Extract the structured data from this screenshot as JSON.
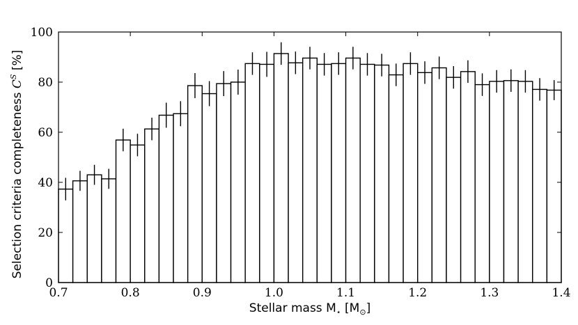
{
  "chart_data": {
    "type": "bar",
    "title": "",
    "xlabel": "Stellar mass M",
    "xlabel_subscript": "⋆",
    "xlabel_unit_open": " [M",
    "xlabel_unit_subscript": "⊙",
    "xlabel_unit_close": "]",
    "ylabel": "Selection criteria completeness ",
    "ylabel_symbol": "C",
    "ylabel_superscript": "S",
    "ylabel_unit": " [%]",
    "xlim": [
      0.7,
      1.4
    ],
    "ylim": [
      0,
      100
    ],
    "xticks": [
      "0.7",
      "0.8",
      "0.9",
      "1.0",
      "1.1",
      "1.2",
      "1.3",
      "1.4"
    ],
    "yticks": [
      "0",
      "20",
      "40",
      "60",
      "80",
      "100"
    ],
    "bin_width": 0.02,
    "bins": [
      {
        "x0": 0.7,
        "value": 37.3,
        "err": 4.5
      },
      {
        "x0": 0.72,
        "value": 40.6,
        "err": 4.0
      },
      {
        "x0": 0.74,
        "value": 43.0,
        "err": 4.0
      },
      {
        "x0": 0.76,
        "value": 41.4,
        "err": 4.0
      },
      {
        "x0": 0.78,
        "value": 56.9,
        "err": 4.5
      },
      {
        "x0": 0.8,
        "value": 54.9,
        "err": 4.5
      },
      {
        "x0": 0.82,
        "value": 61.3,
        "err": 4.5
      },
      {
        "x0": 0.84,
        "value": 66.8,
        "err": 5.0
      },
      {
        "x0": 0.86,
        "value": 67.4,
        "err": 5.0
      },
      {
        "x0": 0.88,
        "value": 78.6,
        "err": 5.0
      },
      {
        "x0": 0.9,
        "value": 75.4,
        "err": 5.0
      },
      {
        "x0": 0.92,
        "value": 79.4,
        "err": 5.0
      },
      {
        "x0": 0.94,
        "value": 80.0,
        "err": 5.0
      },
      {
        "x0": 0.96,
        "value": 87.4,
        "err": 4.5
      },
      {
        "x0": 0.98,
        "value": 87.1,
        "err": 5.0
      },
      {
        "x0": 1.0,
        "value": 91.4,
        "err": 4.5
      },
      {
        "x0": 1.02,
        "value": 87.7,
        "err": 4.5
      },
      {
        "x0": 1.04,
        "value": 89.6,
        "err": 4.5
      },
      {
        "x0": 1.06,
        "value": 87.1,
        "err": 4.5
      },
      {
        "x0": 1.08,
        "value": 87.4,
        "err": 4.5
      },
      {
        "x0": 1.1,
        "value": 89.6,
        "err": 4.5
      },
      {
        "x0": 1.12,
        "value": 87.1,
        "err": 4.5
      },
      {
        "x0": 1.14,
        "value": 86.8,
        "err": 4.5
      },
      {
        "x0": 1.16,
        "value": 82.9,
        "err": 4.5
      },
      {
        "x0": 1.18,
        "value": 87.4,
        "err": 4.5
      },
      {
        "x0": 1.2,
        "value": 83.8,
        "err": 4.5
      },
      {
        "x0": 1.22,
        "value": 85.7,
        "err": 4.5
      },
      {
        "x0": 1.24,
        "value": 81.9,
        "err": 4.5
      },
      {
        "x0": 1.26,
        "value": 84.2,
        "err": 4.5
      },
      {
        "x0": 1.28,
        "value": 79.0,
        "err": 4.5
      },
      {
        "x0": 1.3,
        "value": 80.3,
        "err": 4.5
      },
      {
        "x0": 1.32,
        "value": 80.6,
        "err": 4.5
      },
      {
        "x0": 1.34,
        "value": 80.3,
        "err": 4.5
      },
      {
        "x0": 1.36,
        "value": 77.1,
        "err": 4.5
      },
      {
        "x0": 1.38,
        "value": 76.8,
        "err": 4.0
      }
    ],
    "bar_fill": "#ffffff",
    "bar_stroke": "#000000",
    "grid": false,
    "legend": "none"
  }
}
